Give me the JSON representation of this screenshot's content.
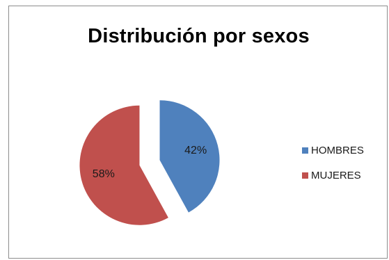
{
  "chart_data": {
    "type": "pie",
    "title": "Distribución por sexos",
    "categories": [
      "HOMBRES",
      "MUJERES"
    ],
    "values": [
      42,
      58
    ],
    "labels": [
      "42%",
      "58%"
    ],
    "colors": [
      "#4f81bd",
      "#c0504d"
    ],
    "start_angle_deg": 0,
    "direction": "clockwise",
    "exploded": true,
    "legend_position": "right"
  }
}
